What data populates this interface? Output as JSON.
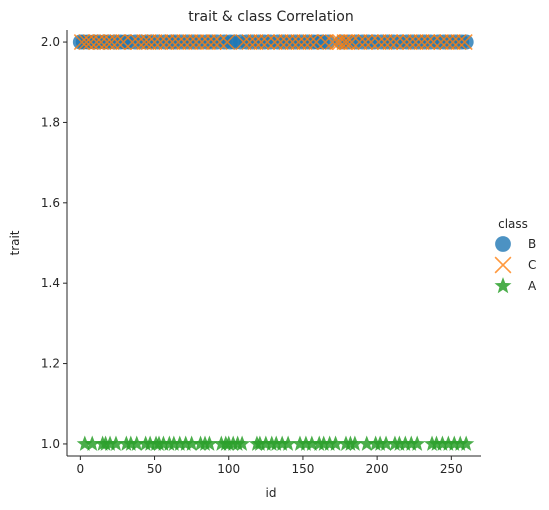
{
  "chart_data": {
    "type": "scatter",
    "title": "trait & class Correlation",
    "xlabel": "id",
    "ylabel": "trait",
    "xlim": [
      -9,
      270
    ],
    "ylim": [
      0.97,
      2.03
    ],
    "xticks": [
      0,
      50,
      100,
      150,
      200,
      250
    ],
    "yticks": [
      1.0,
      1.2,
      1.4,
      1.6,
      1.8,
      2.0
    ],
    "xtick_labels": [
      "0",
      "50",
      "100",
      "150",
      "200",
      "250"
    ],
    "ytick_labels": [
      "1.0",
      "1.2",
      "1.4",
      "1.6",
      "1.8",
      "2.0"
    ],
    "grid": false,
    "legend": {
      "title": "class",
      "placement": "right",
      "entries": [
        "B",
        "C",
        "A"
      ]
    },
    "series": [
      {
        "name": "B",
        "marker": "circle",
        "color": "#1f77b4",
        "y": 2.0,
        "x": [
          0,
          2,
          5,
          9,
          12,
          16,
          19,
          23,
          27,
          30,
          33,
          37,
          41,
          45,
          48,
          52,
          57,
          61,
          64,
          68,
          72,
          76,
          80,
          85,
          88,
          92,
          97,
          101,
          104,
          108,
          112,
          116,
          120,
          124,
          128,
          133,
          137,
          141,
          145,
          149,
          153,
          157,
          160,
          163,
          167,
          176,
          181,
          186,
          190,
          194,
          198,
          203,
          207,
          211,
          216,
          220,
          224,
          228,
          232,
          236,
          241,
          245,
          249,
          253,
          257,
          260
        ]
      },
      {
        "name": "C",
        "marker": "x",
        "color": "#ff7f0e",
        "y": 2.0,
        "x": [
          1,
          4,
          7,
          11,
          14,
          18,
          21,
          25,
          29,
          35,
          39,
          43,
          46,
          50,
          54,
          58,
          62,
          66,
          70,
          74,
          78,
          82,
          86,
          90,
          94,
          99,
          110,
          114,
          118,
          122,
          126,
          131,
          135,
          139,
          143,
          147,
          151,
          155,
          159,
          165,
          170,
          173,
          175,
          178,
          180,
          183,
          188,
          192,
          196,
          201,
          205,
          209,
          213,
          218,
          222,
          226,
          230,
          234,
          238,
          243,
          247,
          251,
          255,
          259
        ]
      },
      {
        "name": "A",
        "marker": "star",
        "color": "#2ca02c",
        "y": 1.0,
        "x": [
          3,
          8,
          15,
          17,
          20,
          24,
          31,
          34,
          38,
          44,
          47,
          51,
          53,
          56,
          60,
          63,
          67,
          71,
          75,
          81,
          84,
          87,
          95,
          98,
          100,
          103,
          106,
          109,
          119,
          121,
          125,
          129,
          132,
          136,
          140,
          148,
          152,
          156,
          161,
          164,
          168,
          172,
          179,
          182,
          185,
          193,
          199,
          202,
          206,
          212,
          215,
          219,
          223,
          227,
          237,
          240,
          244,
          248,
          252,
          256,
          260
        ]
      }
    ]
  }
}
